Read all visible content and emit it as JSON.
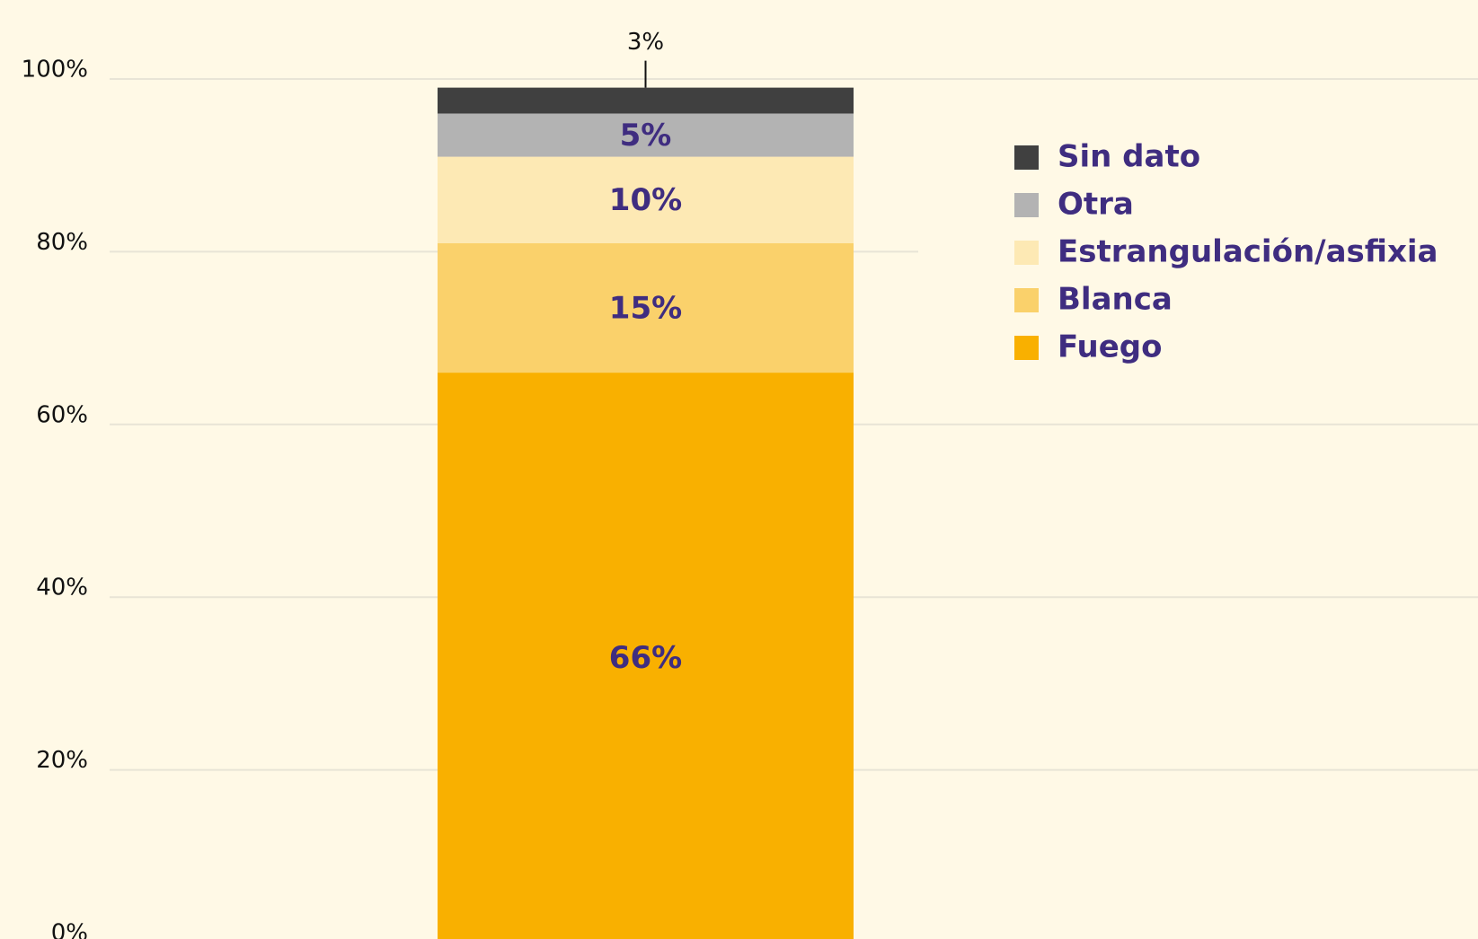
{
  "chart_data": {
    "type": "stacked_bar",
    "categories": [
      null
    ],
    "series": [
      {
        "name": "Fuego",
        "color": "#f9b000",
        "values": [
          66
        ],
        "value_labels": [
          "66%"
        ]
      },
      {
        "name": "Blanca",
        "color": "#fad16b",
        "values": [
          15
        ],
        "value_labels": [
          "15%"
        ]
      },
      {
        "name": "Estrangulación/asfixia",
        "color": "#fde9b4",
        "values": [
          10
        ],
        "value_labels": [
          "10%"
        ]
      },
      {
        "name": "Otra",
        "color": "#b3b3b3",
        "values": [
          5
        ],
        "value_labels": [
          "5%"
        ]
      },
      {
        "name": "Sin dato",
        "color": "#404040",
        "values": [
          3
        ],
        "value_labels": [
          "3%"
        ]
      }
    ],
    "ylim": [
      0,
      100
    ],
    "yticks": [
      {
        "value": 0,
        "label": "0%"
      },
      {
        "value": 20,
        "label": "20%"
      },
      {
        "value": 40,
        "label": "40%"
      },
      {
        "value": 60,
        "label": "60%"
      },
      {
        "value": 80,
        "label": "80%"
      },
      {
        "value": 100,
        "label": "100%"
      }
    ],
    "grid": true,
    "legend": "upper right"
  }
}
